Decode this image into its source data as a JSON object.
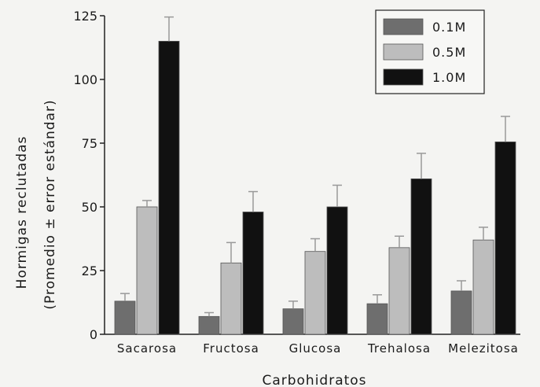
{
  "chart_data": {
    "type": "bar",
    "title": "",
    "xlabel": "Carbohidratos",
    "ylabel_line1": "Hormigas reclutadas",
    "ylabel_line2": "(Promedio ± error estándar)",
    "ylim": [
      0,
      125
    ],
    "yticks": [
      "0",
      "25",
      "50",
      "75",
      "100",
      "125"
    ],
    "categories": [
      "Sacarosa",
      "Fructosa",
      "Glucosa",
      "Trehalosa",
      "Melezitosa"
    ],
    "series": [
      {
        "name": "0.1M",
        "color": "#6e6e6e",
        "values": [
          13,
          7,
          10,
          12,
          17
        ],
        "errors": [
          3,
          1.5,
          3,
          3.5,
          4
        ]
      },
      {
        "name": "0.5M",
        "color": "#bdbdbd",
        "values": [
          50,
          28,
          32.5,
          34,
          37
        ],
        "errors": [
          2.5,
          8,
          5,
          4.5,
          5
        ]
      },
      {
        "name": "1.0M",
        "color": "#111111",
        "values": [
          115,
          48,
          50,
          61,
          75.5
        ],
        "errors": [
          9.5,
          8,
          8.5,
          10,
          10
        ]
      }
    ],
    "legend_position": "top-right",
    "grid": false,
    "error_bars": true
  }
}
